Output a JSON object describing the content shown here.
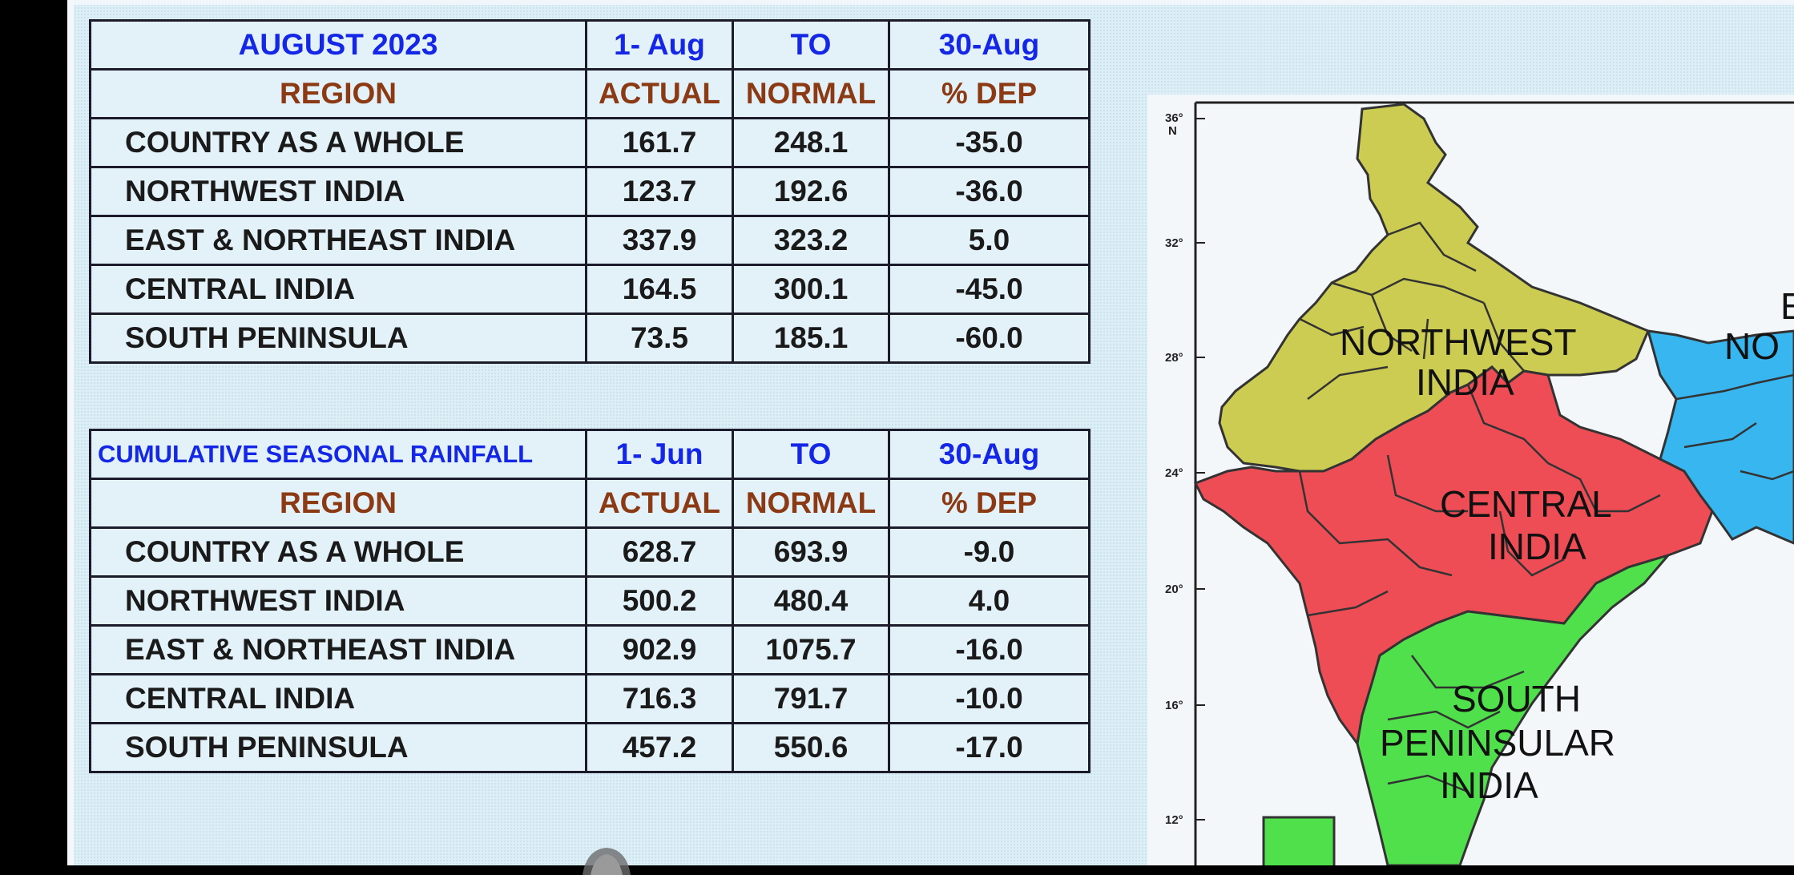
{
  "table_august": {
    "title": "AUGUST 2023",
    "from": "1- Aug",
    "to_word": "TO",
    "to": "30-Aug",
    "headers": [
      "REGION",
      "ACTUAL",
      "NORMAL",
      "% DEP"
    ],
    "rows": [
      {
        "region": "COUNTRY AS A WHOLE",
        "actual": "161.7",
        "normal": "248.1",
        "dep": "-35.0"
      },
      {
        "region": "NORTHWEST INDIA",
        "actual": "123.7",
        "normal": "192.6",
        "dep": "-36.0"
      },
      {
        "region": "EAST & NORTHEAST INDIA",
        "actual": "337.9",
        "normal": "323.2",
        "dep": "5.0"
      },
      {
        "region": "CENTRAL INDIA",
        "actual": "164.5",
        "normal": "300.1",
        "dep": "-45.0"
      },
      {
        "region": "SOUTH PENINSULA",
        "actual": "73.5",
        "normal": "185.1",
        "dep": "-60.0"
      }
    ]
  },
  "table_cumulative": {
    "title": "CUMULATIVE SEASONAL RAINFALL",
    "from": "1- Jun",
    "to_word": "TO",
    "to": "30-Aug",
    "headers": [
      "REGION",
      "ACTUAL",
      "NORMAL",
      "% DEP"
    ],
    "rows": [
      {
        "region": "COUNTRY AS A WHOLE",
        "actual": "628.7",
        "normal": "693.9",
        "dep": "-9.0"
      },
      {
        "region": "NORTHWEST INDIA",
        "actual": "500.2",
        "normal": "480.4",
        "dep": "4.0"
      },
      {
        "region": "EAST & NORTHEAST INDIA",
        "actual": "902.9",
        "normal": "1075.7",
        "dep": "-16.0"
      },
      {
        "region": "CENTRAL INDIA",
        "actual": "716.3",
        "normal": "791.7",
        "dep": "-10.0"
      },
      {
        "region": "SOUTH PENINSULA",
        "actual": "457.2",
        "normal": "550.6",
        "dep": "-17.0"
      }
    ]
  },
  "map": {
    "latitude_ticks": [
      "36°\nN",
      "32°",
      "28°",
      "24°",
      "20°",
      "16°",
      "12°"
    ],
    "region_labels": {
      "northwest": [
        "NORTHWEST",
        "INDIA"
      ],
      "central": [
        "CENTRAL",
        "INDIA"
      ],
      "south": [
        "SOUTH",
        "PENINSULAR",
        "INDIA"
      ],
      "east_partial": [
        "E",
        "NO"
      ]
    },
    "colors": {
      "northwest": "#cccc52",
      "central": "#ee4d55",
      "south": "#4fe04c",
      "east": "#38b6ef"
    }
  }
}
